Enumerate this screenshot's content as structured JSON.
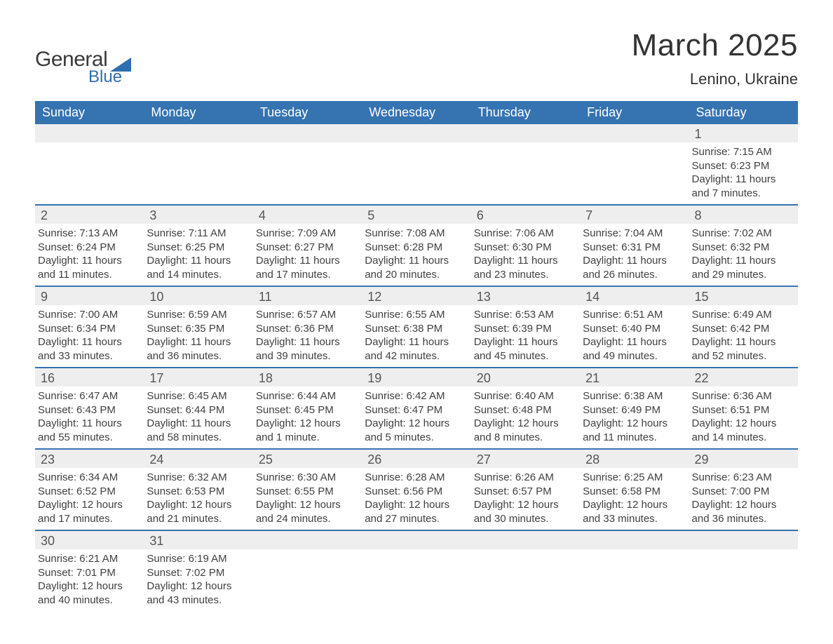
{
  "logo": {
    "text1": "General",
    "text2": "Blue",
    "triangle_color": "#2f6fad"
  },
  "title": "March 2025",
  "location": "Lenino, Ukraine",
  "colors": {
    "header_bg": "#3573b1",
    "header_text": "#ffffff",
    "daynum_bg": "#eeeeee",
    "body_text": "#404040",
    "divider": "#3573b1"
  },
  "day_names": [
    "Sunday",
    "Monday",
    "Tuesday",
    "Wednesday",
    "Thursday",
    "Friday",
    "Saturday"
  ],
  "weeks": [
    [
      {
        "empty": true
      },
      {
        "empty": true
      },
      {
        "empty": true
      },
      {
        "empty": true
      },
      {
        "empty": true
      },
      {
        "empty": true
      },
      {
        "num": "1",
        "sunrise": "Sunrise: 7:15 AM",
        "sunset": "Sunset: 6:23 PM",
        "daylight": "Daylight: 11 hours and 7 minutes."
      }
    ],
    [
      {
        "num": "2",
        "sunrise": "Sunrise: 7:13 AM",
        "sunset": "Sunset: 6:24 PM",
        "daylight": "Daylight: 11 hours and 11 minutes."
      },
      {
        "num": "3",
        "sunrise": "Sunrise: 7:11 AM",
        "sunset": "Sunset: 6:25 PM",
        "daylight": "Daylight: 11 hours and 14 minutes."
      },
      {
        "num": "4",
        "sunrise": "Sunrise: 7:09 AM",
        "sunset": "Sunset: 6:27 PM",
        "daylight": "Daylight: 11 hours and 17 minutes."
      },
      {
        "num": "5",
        "sunrise": "Sunrise: 7:08 AM",
        "sunset": "Sunset: 6:28 PM",
        "daylight": "Daylight: 11 hours and 20 minutes."
      },
      {
        "num": "6",
        "sunrise": "Sunrise: 7:06 AM",
        "sunset": "Sunset: 6:30 PM",
        "daylight": "Daylight: 11 hours and 23 minutes."
      },
      {
        "num": "7",
        "sunrise": "Sunrise: 7:04 AM",
        "sunset": "Sunset: 6:31 PM",
        "daylight": "Daylight: 11 hours and 26 minutes."
      },
      {
        "num": "8",
        "sunrise": "Sunrise: 7:02 AM",
        "sunset": "Sunset: 6:32 PM",
        "daylight": "Daylight: 11 hours and 29 minutes."
      }
    ],
    [
      {
        "num": "9",
        "sunrise": "Sunrise: 7:00 AM",
        "sunset": "Sunset: 6:34 PM",
        "daylight": "Daylight: 11 hours and 33 minutes."
      },
      {
        "num": "10",
        "sunrise": "Sunrise: 6:59 AM",
        "sunset": "Sunset: 6:35 PM",
        "daylight": "Daylight: 11 hours and 36 minutes."
      },
      {
        "num": "11",
        "sunrise": "Sunrise: 6:57 AM",
        "sunset": "Sunset: 6:36 PM",
        "daylight": "Daylight: 11 hours and 39 minutes."
      },
      {
        "num": "12",
        "sunrise": "Sunrise: 6:55 AM",
        "sunset": "Sunset: 6:38 PM",
        "daylight": "Daylight: 11 hours and 42 minutes."
      },
      {
        "num": "13",
        "sunrise": "Sunrise: 6:53 AM",
        "sunset": "Sunset: 6:39 PM",
        "daylight": "Daylight: 11 hours and 45 minutes."
      },
      {
        "num": "14",
        "sunrise": "Sunrise: 6:51 AM",
        "sunset": "Sunset: 6:40 PM",
        "daylight": "Daylight: 11 hours and 49 minutes."
      },
      {
        "num": "15",
        "sunrise": "Sunrise: 6:49 AM",
        "sunset": "Sunset: 6:42 PM",
        "daylight": "Daylight: 11 hours and 52 minutes."
      }
    ],
    [
      {
        "num": "16",
        "sunrise": "Sunrise: 6:47 AM",
        "sunset": "Sunset: 6:43 PM",
        "daylight": "Daylight: 11 hours and 55 minutes."
      },
      {
        "num": "17",
        "sunrise": "Sunrise: 6:45 AM",
        "sunset": "Sunset: 6:44 PM",
        "daylight": "Daylight: 11 hours and 58 minutes."
      },
      {
        "num": "18",
        "sunrise": "Sunrise: 6:44 AM",
        "sunset": "Sunset: 6:45 PM",
        "daylight": "Daylight: 12 hours and 1 minute."
      },
      {
        "num": "19",
        "sunrise": "Sunrise: 6:42 AM",
        "sunset": "Sunset: 6:47 PM",
        "daylight": "Daylight: 12 hours and 5 minutes."
      },
      {
        "num": "20",
        "sunrise": "Sunrise: 6:40 AM",
        "sunset": "Sunset: 6:48 PM",
        "daylight": "Daylight: 12 hours and 8 minutes."
      },
      {
        "num": "21",
        "sunrise": "Sunrise: 6:38 AM",
        "sunset": "Sunset: 6:49 PM",
        "daylight": "Daylight: 12 hours and 11 minutes."
      },
      {
        "num": "22",
        "sunrise": "Sunrise: 6:36 AM",
        "sunset": "Sunset: 6:51 PM",
        "daylight": "Daylight: 12 hours and 14 minutes."
      }
    ],
    [
      {
        "num": "23",
        "sunrise": "Sunrise: 6:34 AM",
        "sunset": "Sunset: 6:52 PM",
        "daylight": "Daylight: 12 hours and 17 minutes."
      },
      {
        "num": "24",
        "sunrise": "Sunrise: 6:32 AM",
        "sunset": "Sunset: 6:53 PM",
        "daylight": "Daylight: 12 hours and 21 minutes."
      },
      {
        "num": "25",
        "sunrise": "Sunrise: 6:30 AM",
        "sunset": "Sunset: 6:55 PM",
        "daylight": "Daylight: 12 hours and 24 minutes."
      },
      {
        "num": "26",
        "sunrise": "Sunrise: 6:28 AM",
        "sunset": "Sunset: 6:56 PM",
        "daylight": "Daylight: 12 hours and 27 minutes."
      },
      {
        "num": "27",
        "sunrise": "Sunrise: 6:26 AM",
        "sunset": "Sunset: 6:57 PM",
        "daylight": "Daylight: 12 hours and 30 minutes."
      },
      {
        "num": "28",
        "sunrise": "Sunrise: 6:25 AM",
        "sunset": "Sunset: 6:58 PM",
        "daylight": "Daylight: 12 hours and 33 minutes."
      },
      {
        "num": "29",
        "sunrise": "Sunrise: 6:23 AM",
        "sunset": "Sunset: 7:00 PM",
        "daylight": "Daylight: 12 hours and 36 minutes."
      }
    ],
    [
      {
        "num": "30",
        "sunrise": "Sunrise: 6:21 AM",
        "sunset": "Sunset: 7:01 PM",
        "daylight": "Daylight: 12 hours and 40 minutes."
      },
      {
        "num": "31",
        "sunrise": "Sunrise: 6:19 AM",
        "sunset": "Sunset: 7:02 PM",
        "daylight": "Daylight: 12 hours and 43 minutes."
      },
      {
        "empty": true
      },
      {
        "empty": true
      },
      {
        "empty": true
      },
      {
        "empty": true
      },
      {
        "empty": true
      }
    ]
  ]
}
